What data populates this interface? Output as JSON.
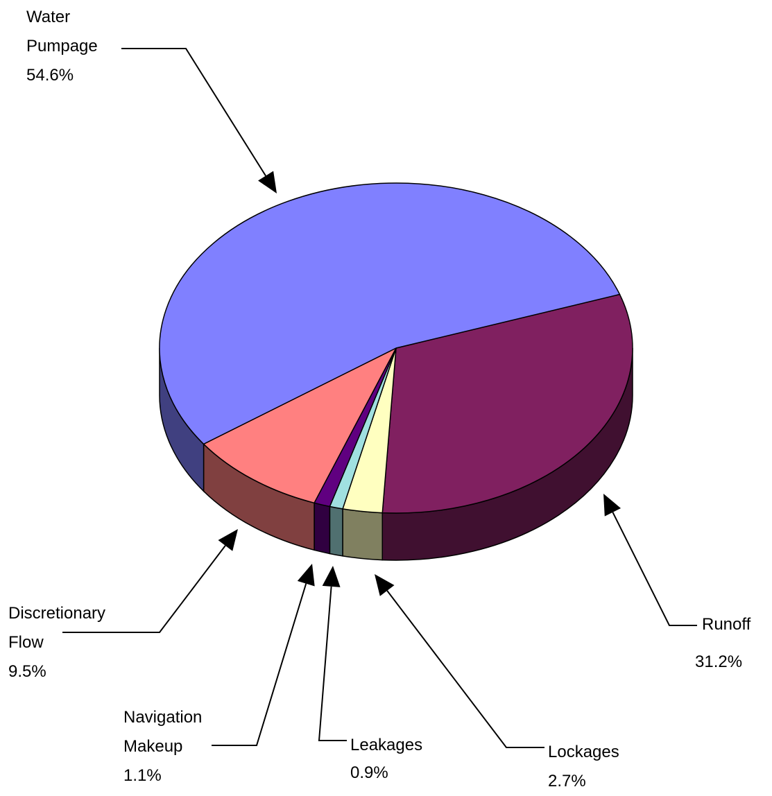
{
  "chart_data": {
    "type": "pie3d",
    "categories": [
      "Runoff",
      "Lockages",
      "Leakages",
      "Navigation Makeup",
      "Discretionary Flow",
      "Water Pumpage"
    ],
    "values": [
      31.2,
      2.7,
      0.9,
      1.1,
      9.5,
      54.6
    ],
    "value_labels": [
      "31.2%",
      "2.7%",
      "0.9%",
      "1.1%",
      "9.5%",
      "54.6%"
    ],
    "colors": [
      "#802060",
      "#ffffc0",
      "#a0e0e0",
      "#600080",
      "#ff8080",
      "#8080ff"
    ]
  }
}
